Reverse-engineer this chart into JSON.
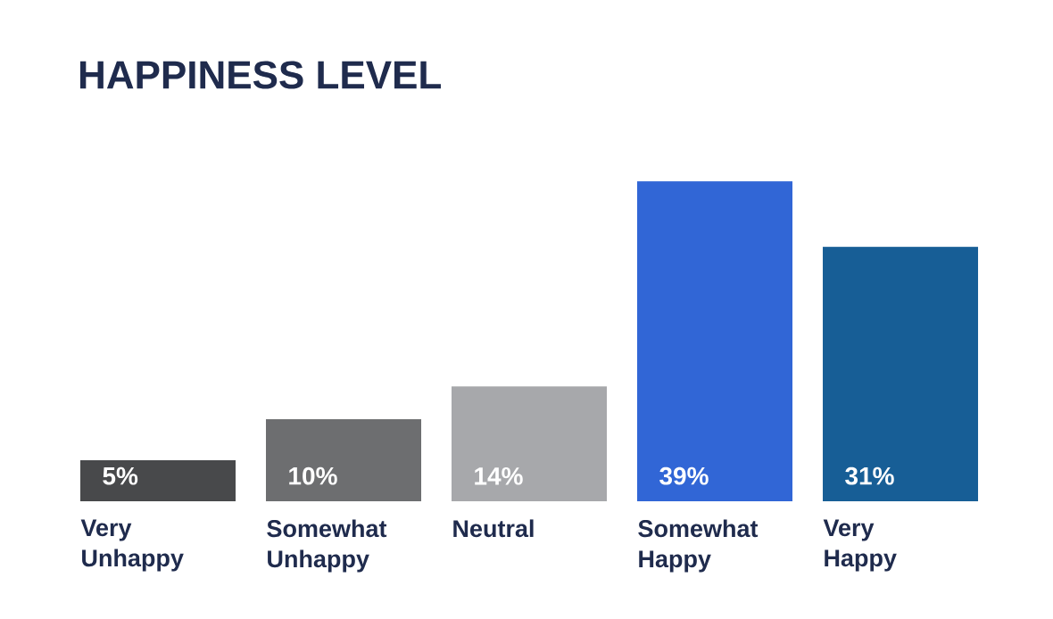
{
  "chart_data": {
    "type": "bar",
    "title": "HAPPINESS LEVEL",
    "categories": [
      "Very Unhappy",
      "Somewhat Unhappy",
      "Neutral",
      "Somewhat Happy",
      "Very Happy"
    ],
    "values": [
      5,
      10,
      14,
      39,
      31
    ],
    "value_labels": [
      "5%",
      "10%",
      "14%",
      "39%",
      "31%"
    ],
    "colors": [
      "#48494b",
      "#6d6e70",
      "#a7a8ab",
      "#3166d6",
      "#175e96"
    ]
  }
}
